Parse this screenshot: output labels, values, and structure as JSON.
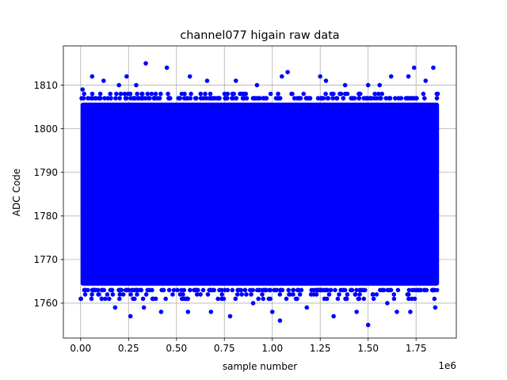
{
  "chart_data": {
    "type": "scatter",
    "title": "channel077 higain raw data",
    "xlabel": "sample number",
    "ylabel": "ADC Code",
    "x_offset_label": "1e6",
    "x_scale": 1000000,
    "xlim": [
      -90000,
      1960000
    ],
    "ylim": [
      1752,
      1819
    ],
    "grid": true,
    "marker_color": "#0000ff",
    "x_ticks": [
      0,
      250000,
      500000,
      750000,
      1000000,
      1250000,
      1500000,
      1750000
    ],
    "x_tick_labels": [
      "0.00",
      "0.25",
      "0.50",
      "0.75",
      "1.00",
      "1.25",
      "1.50",
      "1.75"
    ],
    "y_ticks": [
      1760,
      1770,
      1780,
      1790,
      1800,
      1810
    ],
    "y_tick_labels": [
      "1760",
      "1770",
      "1780",
      "1790",
      "1800",
      "1810"
    ],
    "dense_band": {
      "x_range": [
        0,
        1870000
      ],
      "y_range": [
        1764,
        1806
      ]
    },
    "fringe_rows": [
      1761,
      1762,
      1763,
      1807,
      1808
    ],
    "outlier_points": [
      {
        "x": 340000,
        "y": 1815
      },
      {
        "x": 1080000,
        "y": 1813
      },
      {
        "x": 1740000,
        "y": 1814
      },
      {
        "x": 1840000,
        "y": 1814
      },
      {
        "x": 450000,
        "y": 1814
      },
      {
        "x": 60000,
        "y": 1812
      },
      {
        "x": 240000,
        "y": 1812
      },
      {
        "x": 570000,
        "y": 1812
      },
      {
        "x": 1050000,
        "y": 1812
      },
      {
        "x": 1250000,
        "y": 1812
      },
      {
        "x": 1620000,
        "y": 1812
      },
      {
        "x": 1710000,
        "y": 1812
      },
      {
        "x": 10000,
        "y": 1809
      },
      {
        "x": 120000,
        "y": 1811
      },
      {
        "x": 290000,
        "y": 1810
      },
      {
        "x": 660000,
        "y": 1811
      },
      {
        "x": 810000,
        "y": 1811
      },
      {
        "x": 1280000,
        "y": 1811
      },
      {
        "x": 1500000,
        "y": 1810
      },
      {
        "x": 1800000,
        "y": 1811
      },
      {
        "x": 200000,
        "y": 1810
      },
      {
        "x": 920000,
        "y": 1810
      },
      {
        "x": 1380000,
        "y": 1810
      },
      {
        "x": 1560000,
        "y": 1810
      },
      {
        "x": 260000,
        "y": 1757
      },
      {
        "x": 780000,
        "y": 1757
      },
      {
        "x": 1320000,
        "y": 1757
      },
      {
        "x": 1500000,
        "y": 1755
      },
      {
        "x": 1040000,
        "y": 1756
      },
      {
        "x": 420000,
        "y": 1758
      },
      {
        "x": 680000,
        "y": 1758
      },
      {
        "x": 1000000,
        "y": 1758
      },
      {
        "x": 1650000,
        "y": 1758
      },
      {
        "x": 1720000,
        "y": 1758
      },
      {
        "x": 180000,
        "y": 1759
      },
      {
        "x": 330000,
        "y": 1759
      },
      {
        "x": 560000,
        "y": 1758
      },
      {
        "x": 1180000,
        "y": 1759
      },
      {
        "x": 1440000,
        "y": 1758
      },
      {
        "x": 1850000,
        "y": 1759
      },
      {
        "x": 900000,
        "y": 1760
      },
      {
        "x": 1600000,
        "y": 1760
      }
    ]
  }
}
